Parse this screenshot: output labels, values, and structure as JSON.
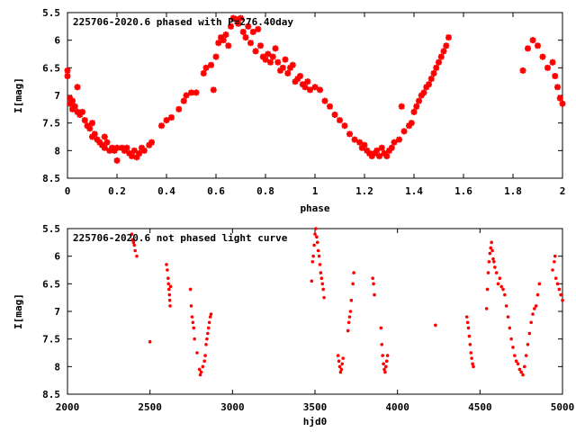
{
  "chart_data": [
    {
      "type": "scatter",
      "title": "225706-2020.6 phased with P=276.40day",
      "xlabel": "phase",
      "ylabel": "I[mag]",
      "xlim": [
        0,
        2
      ],
      "ylim": [
        8.5,
        5.5
      ],
      "y_inverted": true,
      "xticks": [
        "0",
        "0.2",
        "0.4",
        "0.6",
        "0.8",
        "1",
        "1.2",
        "1.4",
        "1.6",
        "1.8",
        "2"
      ],
      "xtick_values": [
        0,
        0.2,
        0.4,
        0.6,
        0.8,
        1.0,
        1.2,
        1.4,
        1.6,
        1.8,
        2.0
      ],
      "yticks": [
        "5.5",
        "6",
        "6.5",
        "7",
        "7.5",
        "8",
        "8.5"
      ],
      "ytick_values": [
        5.5,
        6,
        6.5,
        7,
        7.5,
        8,
        8.5
      ],
      "marker": "star",
      "color": "#ff0000",
      "points": [
        [
          0.0,
          6.55
        ],
        [
          0.0,
          6.65
        ],
        [
          0.01,
          7.05
        ],
        [
          0.01,
          7.15
        ],
        [
          0.02,
          7.1
        ],
        [
          0.02,
          7.25
        ],
        [
          0.03,
          7.2
        ],
        [
          0.04,
          7.3
        ],
        [
          0.04,
          6.85
        ],
        [
          0.05,
          7.35
        ],
        [
          0.06,
          7.3
        ],
        [
          0.07,
          7.45
        ],
        [
          0.08,
          7.55
        ],
        [
          0.09,
          7.6
        ],
        [
          0.1,
          7.5
        ],
        [
          0.1,
          7.75
        ],
        [
          0.11,
          7.7
        ],
        [
          0.12,
          7.8
        ],
        [
          0.13,
          7.85
        ],
        [
          0.14,
          7.9
        ],
        [
          0.15,
          7.75
        ],
        [
          0.15,
          7.95
        ],
        [
          0.16,
          7.85
        ],
        [
          0.17,
          8.0
        ],
        [
          0.18,
          7.95
        ],
        [
          0.19,
          8.0
        ],
        [
          0.2,
          7.95
        ],
        [
          0.2,
          8.18
        ],
        [
          0.22,
          7.95
        ],
        [
          0.23,
          8.0
        ],
        [
          0.24,
          7.95
        ],
        [
          0.25,
          8.05
        ],
        [
          0.26,
          8.1
        ],
        [
          0.27,
          8.0
        ],
        [
          0.28,
          8.12
        ],
        [
          0.29,
          8.05
        ],
        [
          0.3,
          7.95
        ],
        [
          0.31,
          8.0
        ],
        [
          0.33,
          7.9
        ],
        [
          0.34,
          7.85
        ],
        [
          0.38,
          7.55
        ],
        [
          0.4,
          7.45
        ],
        [
          0.42,
          7.4
        ],
        [
          0.45,
          7.25
        ],
        [
          0.47,
          7.1
        ],
        [
          0.48,
          7.0
        ],
        [
          0.5,
          6.95
        ],
        [
          0.52,
          6.95
        ],
        [
          0.55,
          6.6
        ],
        [
          0.56,
          6.5
        ],
        [
          0.58,
          6.45
        ],
        [
          0.59,
          6.9
        ],
        [
          0.6,
          6.3
        ],
        [
          0.61,
          6.05
        ],
        [
          0.62,
          5.95
        ],
        [
          0.63,
          6.0
        ],
        [
          0.64,
          5.9
        ],
        [
          0.65,
          6.1
        ],
        [
          0.66,
          5.75
        ],
        [
          0.67,
          5.6
        ],
        [
          0.68,
          5.62
        ],
        [
          0.69,
          5.7
        ],
        [
          0.7,
          5.6
        ],
        [
          0.71,
          5.85
        ],
        [
          0.72,
          5.95
        ],
        [
          0.73,
          5.75
        ],
        [
          0.74,
          6.05
        ],
        [
          0.75,
          5.85
        ],
        [
          0.76,
          6.2
        ],
        [
          0.77,
          5.8
        ],
        [
          0.78,
          6.1
        ],
        [
          0.79,
          6.3
        ],
        [
          0.8,
          6.35
        ],
        [
          0.81,
          6.25
        ],
        [
          0.82,
          6.4
        ],
        [
          0.83,
          6.3
        ],
        [
          0.84,
          6.15
        ],
        [
          0.85,
          6.4
        ],
        [
          0.86,
          6.55
        ],
        [
          0.87,
          6.5
        ],
        [
          0.88,
          6.35
        ],
        [
          0.89,
          6.6
        ],
        [
          0.9,
          6.5
        ],
        [
          0.91,
          6.45
        ],
        [
          0.92,
          6.75
        ],
        [
          0.93,
          6.7
        ],
        [
          0.94,
          6.65
        ],
        [
          0.95,
          6.8
        ],
        [
          0.96,
          6.85
        ],
        [
          0.97,
          6.75
        ],
        [
          0.98,
          6.9
        ],
        [
          1.0,
          6.85
        ],
        [
          1.02,
          6.9
        ],
        [
          1.04,
          7.1
        ],
        [
          1.06,
          7.2
        ],
        [
          1.08,
          7.35
        ],
        [
          1.1,
          7.45
        ],
        [
          1.12,
          7.55
        ],
        [
          1.14,
          7.7
        ],
        [
          1.16,
          7.8
        ],
        [
          1.18,
          7.85
        ],
        [
          1.19,
          7.95
        ],
        [
          1.2,
          7.9
        ],
        [
          1.21,
          8.0
        ],
        [
          1.22,
          8.05
        ],
        [
          1.23,
          8.1
        ],
        [
          1.24,
          8.05
        ],
        [
          1.25,
          8.0
        ],
        [
          1.26,
          8.1
        ],
        [
          1.27,
          7.95
        ],
        [
          1.28,
          8.05
        ],
        [
          1.29,
          8.1
        ],
        [
          1.3,
          8.0
        ],
        [
          1.31,
          7.95
        ],
        [
          1.32,
          7.85
        ],
        [
          1.34,
          7.8
        ],
        [
          1.35,
          7.2
        ],
        [
          1.36,
          7.65
        ],
        [
          1.38,
          7.55
        ],
        [
          1.39,
          7.5
        ],
        [
          1.4,
          7.3
        ],
        [
          1.41,
          7.2
        ],
        [
          1.42,
          7.1
        ],
        [
          1.43,
          7.0
        ],
        [
          1.44,
          6.95
        ],
        [
          1.45,
          6.85
        ],
        [
          1.46,
          6.8
        ],
        [
          1.47,
          6.7
        ],
        [
          1.48,
          6.6
        ],
        [
          1.49,
          6.5
        ],
        [
          1.5,
          6.4
        ],
        [
          1.51,
          6.3
        ],
        [
          1.52,
          6.2
        ],
        [
          1.53,
          6.1
        ],
        [
          1.54,
          5.95
        ],
        [
          1.84,
          6.55
        ],
        [
          1.86,
          6.15
        ],
        [
          1.88,
          6.0
        ],
        [
          1.9,
          6.1
        ],
        [
          1.92,
          6.3
        ],
        [
          1.94,
          6.5
        ],
        [
          1.96,
          6.4
        ],
        [
          1.97,
          6.65
        ],
        [
          1.98,
          6.85
        ],
        [
          1.99,
          7.05
        ],
        [
          2.0,
          7.15
        ]
      ]
    },
    {
      "type": "scatter",
      "title": "225706-2020.6 not phased light curve",
      "xlabel": "hjd0",
      "ylabel": "I[mag]",
      "xlim": [
        2000,
        5000
      ],
      "ylim": [
        8.5,
        5.5
      ],
      "y_inverted": true,
      "xticks": [
        "2000",
        "2500",
        "3000",
        "3500",
        "4000",
        "4500",
        "5000"
      ],
      "xtick_values": [
        2000,
        2500,
        3000,
        3500,
        4000,
        4500,
        5000
      ],
      "yticks": [
        "5.5",
        "6",
        "6.5",
        "7",
        "7.5",
        "8",
        "8.5"
      ],
      "ytick_values": [
        5.5,
        6,
        6.5,
        7,
        7.5,
        8,
        8.5
      ],
      "marker": "dot",
      "color": "#ff0000",
      "points": [
        [
          2390,
          5.6
        ],
        [
          2395,
          5.7
        ],
        [
          2400,
          5.75
        ],
        [
          2405,
          5.8
        ],
        [
          2410,
          5.9
        ],
        [
          2420,
          6.0
        ],
        [
          2500,
          7.55
        ],
        [
          2600,
          6.15
        ],
        [
          2605,
          6.25
        ],
        [
          2610,
          6.4
        ],
        [
          2612,
          6.5
        ],
        [
          2615,
          6.6
        ],
        [
          2618,
          6.7
        ],
        [
          2620,
          6.8
        ],
        [
          2622,
          6.9
        ],
        [
          2625,
          6.55
        ],
        [
          2745,
          6.6
        ],
        [
          2750,
          6.9
        ],
        [
          2755,
          7.1
        ],
        [
          2760,
          7.2
        ],
        [
          2765,
          7.3
        ],
        [
          2770,
          7.5
        ],
        [
          2785,
          7.75
        ],
        [
          2800,
          8.05
        ],
        [
          2805,
          8.15
        ],
        [
          2810,
          8.1
        ],
        [
          2820,
          8.0
        ],
        [
          2830,
          7.9
        ],
        [
          2835,
          7.8
        ],
        [
          2840,
          7.6
        ],
        [
          2845,
          7.5
        ],
        [
          2850,
          7.4
        ],
        [
          2855,
          7.3
        ],
        [
          2860,
          7.2
        ],
        [
          2865,
          7.1
        ],
        [
          2870,
          7.05
        ],
        [
          3480,
          6.45
        ],
        [
          3485,
          6.1
        ],
        [
          3490,
          6.0
        ],
        [
          3495,
          5.8
        ],
        [
          3500,
          5.6
        ],
        [
          3505,
          5.5
        ],
        [
          3510,
          5.65
        ],
        [
          3515,
          5.75
        ],
        [
          3520,
          5.9
        ],
        [
          3525,
          6.0
        ],
        [
          3530,
          6.15
        ],
        [
          3535,
          6.3
        ],
        [
          3540,
          6.4
        ],
        [
          3545,
          6.5
        ],
        [
          3550,
          6.6
        ],
        [
          3555,
          6.75
        ],
        [
          3640,
          7.8
        ],
        [
          3645,
          7.9
        ],
        [
          3650,
          8.0
        ],
        [
          3655,
          8.1
        ],
        [
          3660,
          8.05
        ],
        [
          3665,
          7.95
        ],
        [
          3670,
          7.85
        ],
        [
          3700,
          7.35
        ],
        [
          3705,
          7.2
        ],
        [
          3710,
          7.1
        ],
        [
          3715,
          7.0
        ],
        [
          3720,
          6.8
        ],
        [
          3730,
          6.5
        ],
        [
          3735,
          6.3
        ],
        [
          3850,
          6.4
        ],
        [
          3855,
          6.5
        ],
        [
          3860,
          6.7
        ],
        [
          3900,
          7.3
        ],
        [
          3905,
          7.6
        ],
        [
          3910,
          7.8
        ],
        [
          3915,
          7.95
        ],
        [
          3920,
          8.05
        ],
        [
          3925,
          8.1
        ],
        [
          3930,
          8.0
        ],
        [
          3935,
          7.9
        ],
        [
          3940,
          7.8
        ],
        [
          4230,
          7.25
        ],
        [
          4420,
          7.1
        ],
        [
          4425,
          7.2
        ],
        [
          4430,
          7.3
        ],
        [
          4435,
          7.45
        ],
        [
          4440,
          7.6
        ],
        [
          4445,
          7.75
        ],
        [
          4450,
          7.85
        ],
        [
          4455,
          7.95
        ],
        [
          4460,
          8.0
        ],
        [
          4540,
          6.95
        ],
        [
          4545,
          6.6
        ],
        [
          4550,
          6.3
        ],
        [
          4555,
          6.1
        ],
        [
          4560,
          5.95
        ],
        [
          4565,
          5.85
        ],
        [
          4570,
          5.75
        ],
        [
          4575,
          5.9
        ],
        [
          4580,
          6.05
        ],
        [
          4585,
          6.1
        ],
        [
          4590,
          6.2
        ],
        [
          4600,
          6.3
        ],
        [
          4610,
          6.5
        ],
        [
          4620,
          6.4
        ],
        [
          4630,
          6.55
        ],
        [
          4640,
          6.6
        ],
        [
          4650,
          6.7
        ],
        [
          4660,
          6.9
        ],
        [
          4670,
          7.1
        ],
        [
          4680,
          7.3
        ],
        [
          4690,
          7.5
        ],
        [
          4700,
          7.65
        ],
        [
          4710,
          7.8
        ],
        [
          4720,
          7.9
        ],
        [
          4730,
          7.95
        ],
        [
          4740,
          8.05
        ],
        [
          4750,
          8.1
        ],
        [
          4760,
          8.15
        ],
        [
          4770,
          8.0
        ],
        [
          4780,
          7.8
        ],
        [
          4790,
          7.6
        ],
        [
          4800,
          7.4
        ],
        [
          4810,
          7.2
        ],
        [
          4820,
          7.05
        ],
        [
          4830,
          6.95
        ],
        [
          4840,
          6.9
        ],
        [
          4850,
          6.7
        ],
        [
          4860,
          6.5
        ],
        [
          4940,
          6.25
        ],
        [
          4950,
          6.1
        ],
        [
          4955,
          6.0
        ],
        [
          4960,
          6.4
        ],
        [
          4970,
          6.5
        ],
        [
          4980,
          6.6
        ],
        [
          4990,
          6.7
        ],
        [
          5000,
          6.8
        ]
      ]
    }
  ]
}
